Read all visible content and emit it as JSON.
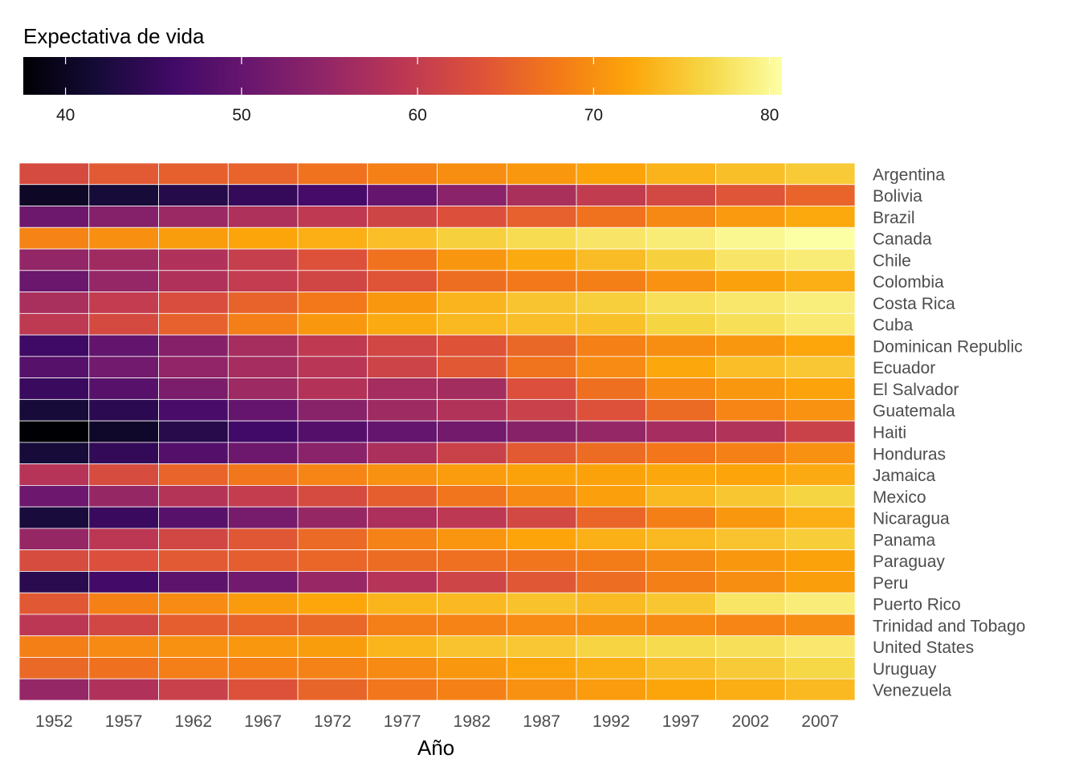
{
  "chart_data": {
    "type": "heatmap",
    "title": "",
    "xlabel": "Año",
    "ylabel": "",
    "legend": {
      "title": "Expectativa de vida",
      "position": "top",
      "ticks": [
        40,
        50,
        60,
        70,
        80
      ],
      "range": [
        37.6,
        80.7
      ]
    },
    "colorscale": "inferno",
    "grid": true,
    "x": [
      "1952",
      "1957",
      "1962",
      "1967",
      "1972",
      "1977",
      "1982",
      "1987",
      "1992",
      "1997",
      "2002",
      "2007"
    ],
    "y": [
      "Argentina",
      "Bolivia",
      "Brazil",
      "Canada",
      "Chile",
      "Colombia",
      "Costa Rica",
      "Cuba",
      "Dominican Republic",
      "Ecuador",
      "El Salvador",
      "Guatemala",
      "Haiti",
      "Honduras",
      "Jamaica",
      "Mexico",
      "Nicaragua",
      "Panama",
      "Paraguay",
      "Peru",
      "Puerto Rico",
      "Trinidad and Tobago",
      "United States",
      "Uruguay",
      "Venezuela"
    ],
    "z": [
      [
        62.5,
        64.4,
        65.1,
        65.6,
        67.1,
        68.5,
        69.9,
        70.8,
        71.9,
        73.3,
        74.3,
        75.3
      ],
      [
        40.4,
        41.9,
        43.4,
        45.0,
        46.7,
        50.0,
        53.9,
        57.3,
        59.9,
        62.0,
        63.9,
        65.6
      ],
      [
        50.9,
        53.3,
        55.7,
        57.6,
        59.5,
        61.5,
        63.3,
        65.2,
        67.1,
        69.4,
        71.0,
        72.4
      ],
      [
        68.8,
        70.0,
        71.3,
        72.1,
        72.9,
        74.2,
        75.8,
        76.9,
        77.9,
        78.6,
        79.8,
        80.7
      ],
      [
        54.7,
        56.1,
        57.9,
        60.5,
        63.4,
        67.1,
        70.6,
        72.5,
        74.1,
        75.8,
        77.9,
        78.6
      ],
      [
        50.6,
        55.1,
        57.9,
        60.0,
        61.6,
        63.8,
        66.7,
        67.8,
        68.4,
        70.3,
        71.7,
        72.9
      ],
      [
        57.2,
        60.0,
        62.8,
        65.4,
        67.8,
        70.8,
        73.5,
        74.8,
        75.7,
        77.3,
        78.1,
        78.8
      ],
      [
        59.4,
        62.3,
        65.2,
        68.3,
        70.7,
        72.6,
        73.7,
        74.2,
        74.4,
        76.2,
        77.2,
        78.3
      ],
      [
        45.9,
        49.8,
        53.5,
        56.8,
        59.6,
        61.8,
        63.7,
        66.0,
        68.5,
        69.9,
        70.8,
        72.2
      ],
      [
        48.4,
        51.4,
        54.6,
        56.7,
        58.8,
        61.3,
        64.3,
        67.2,
        69.6,
        72.3,
        74.2,
        75.0
      ],
      [
        45.3,
        48.6,
        52.3,
        55.9,
        58.2,
        56.7,
        56.6,
        63.2,
        66.8,
        69.5,
        70.7,
        71.9
      ],
      [
        42.0,
        44.1,
        47.0,
        50.0,
        53.7,
        56.0,
        58.1,
        60.8,
        63.4,
        66.3,
        68.98,
        70.3
      ],
      [
        37.6,
        40.7,
        43.6,
        46.2,
        48.0,
        49.9,
        51.5,
        53.6,
        55.1,
        56.7,
        58.1,
        60.9
      ],
      [
        41.9,
        44.7,
        48.0,
        50.9,
        53.9,
        57.4,
        60.9,
        64.5,
        66.4,
        67.7,
        68.6,
        70.2
      ],
      [
        58.5,
        62.6,
        65.6,
        67.5,
        69.0,
        70.1,
        71.2,
        71.8,
        71.8,
        72.3,
        72.0,
        72.6
      ],
      [
        50.8,
        55.2,
        58.3,
        60.1,
        62.4,
        65.0,
        67.4,
        69.5,
        71.5,
        73.7,
        74.9,
        76.2
      ],
      [
        42.3,
        45.4,
        48.6,
        51.9,
        55.2,
        57.5,
        59.3,
        62.0,
        65.8,
        68.4,
        70.8,
        72.9
      ],
      [
        55.2,
        59.2,
        61.8,
        64.1,
        66.2,
        68.7,
        70.5,
        72.0,
        73.0,
        73.7,
        74.7,
        75.5
      ],
      [
        62.6,
        63.2,
        64.4,
        64.9,
        65.8,
        66.4,
        66.9,
        67.4,
        68.2,
        69.4,
        70.8,
        71.8
      ],
      [
        43.9,
        46.3,
        49.1,
        51.4,
        55.4,
        58.4,
        61.4,
        64.1,
        66.5,
        68.4,
        69.9,
        71.4
      ],
      [
        64.3,
        68.5,
        69.6,
        71.1,
        72.2,
        73.4,
        73.8,
        74.6,
        73.9,
        74.9,
        77.8,
        78.7
      ],
      [
        59.1,
        61.8,
        64.9,
        65.4,
        65.9,
        68.3,
        68.8,
        69.6,
        69.9,
        69.5,
        68.98,
        69.8
      ],
      [
        68.4,
        69.5,
        70.2,
        70.8,
        71.3,
        73.4,
        74.7,
        75.0,
        76.1,
        76.8,
        77.3,
        78.2
      ],
      [
        66.1,
        67.0,
        68.3,
        68.5,
        68.7,
        69.5,
        70.8,
        71.9,
        72.8,
        74.2,
        75.3,
        76.4
      ],
      [
        55.1,
        57.9,
        60.8,
        63.5,
        65.7,
        67.5,
        68.6,
        70.2,
        71.2,
        72.1,
        72.8,
        73.7
      ]
    ]
  }
}
